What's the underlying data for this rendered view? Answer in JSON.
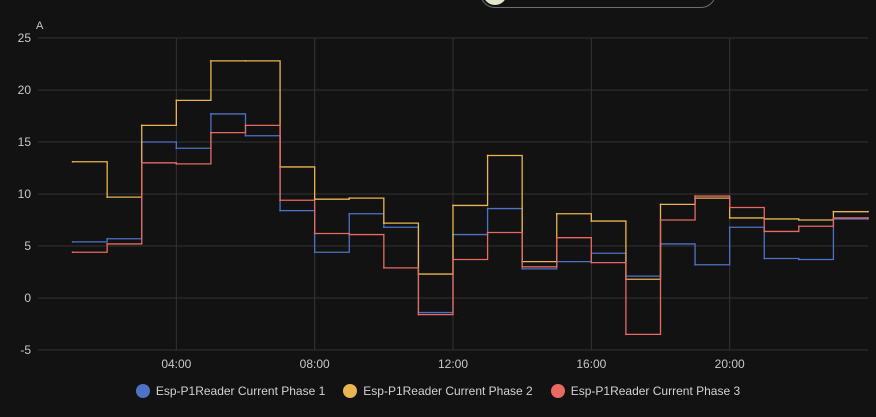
{
  "colors": {
    "background": "#121212",
    "grid": "#333333",
    "axis_text": "#c8c8c8",
    "series": [
      "#4e72c5",
      "#e9b54e",
      "#e86a61"
    ]
  },
  "top_control": {
    "icon": "toggle-pill"
  },
  "chart_data": {
    "type": "line",
    "step": true,
    "ylabel": "A",
    "ylim": [
      -5,
      25
    ],
    "yticks": [
      "25",
      "20",
      "15",
      "10",
      "5",
      "0",
      "-5"
    ],
    "ytick_values": [
      25,
      20,
      15,
      10,
      5,
      0,
      -5
    ],
    "xlim": [
      "00:00",
      "24:00"
    ],
    "xticks": [
      "04:00",
      "08:00",
      "12:00",
      "16:00",
      "20:00"
    ],
    "xtick_values": [
      "04:00",
      "08:00",
      "12:00",
      "16:00",
      "20:00"
    ],
    "grid": true,
    "legend_position": "bottom",
    "x": [
      "01:00",
      "02:00",
      "03:00",
      "04:00",
      "05:00",
      "06:00",
      "07:00",
      "08:00",
      "09:00",
      "10:00",
      "11:00",
      "12:00",
      "13:00",
      "14:00",
      "15:00",
      "16:00",
      "17:00",
      "18:00",
      "19:00",
      "20:00",
      "21:00",
      "22:00",
      "23:00",
      "24:00"
    ],
    "series": [
      {
        "name": "Esp-P1Reader Current Phase 1",
        "values": [
          5.4,
          5.7,
          15.0,
          14.4,
          17.7,
          15.6,
          8.4,
          4.4,
          8.1,
          6.8,
          -1.4,
          6.1,
          8.6,
          2.8,
          3.5,
          4.3,
          2.1,
          5.2,
          3.2,
          6.8,
          3.8,
          3.7,
          7.6,
          7.6
        ]
      },
      {
        "name": "Esp-P1Reader Current Phase 2",
        "values": [
          13.1,
          9.7,
          16.6,
          19.0,
          22.8,
          22.8,
          12.6,
          9.5,
          9.6,
          7.2,
          2.3,
          8.9,
          13.7,
          3.5,
          8.1,
          7.4,
          1.8,
          9.0,
          9.6,
          7.7,
          7.6,
          7.5,
          8.3,
          8.3
        ]
      },
      {
        "name": "Esp-P1Reader Current Phase 3",
        "values": [
          4.4,
          5.2,
          13.0,
          12.9,
          15.9,
          16.6,
          9.4,
          6.2,
          6.1,
          2.9,
          -1.6,
          3.7,
          6.3,
          3.0,
          5.8,
          3.4,
          -3.5,
          7.5,
          9.8,
          8.7,
          6.4,
          6.9,
          7.7,
          7.7
        ]
      }
    ]
  }
}
